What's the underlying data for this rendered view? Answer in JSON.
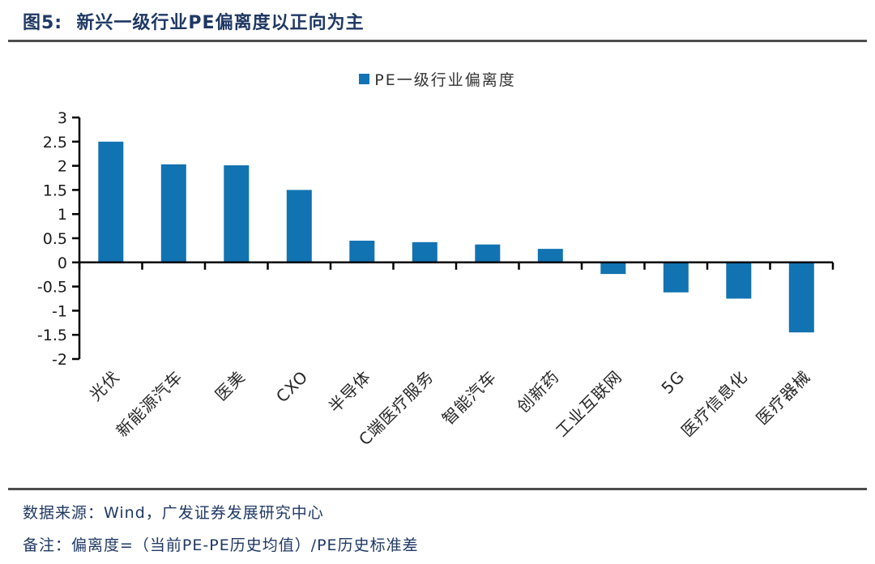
{
  "header": {
    "title": "图5:  新兴一级行业PE偏离度以正向为主"
  },
  "chart_data": {
    "type": "bar",
    "title": "",
    "legend": "PE一级行业偏离度",
    "legend_position": "top-center",
    "categories": [
      "光伏",
      "新能源汽车",
      "医美",
      "CXO",
      "半导体",
      "C端医疗服务",
      "智能汽车",
      "创新药",
      "工业互联网",
      "5G",
      "医疗信息化",
      "医疗器械"
    ],
    "values": [
      2.5,
      2.03,
      2.01,
      1.5,
      0.45,
      0.42,
      0.37,
      0.28,
      -0.24,
      -0.62,
      -0.75,
      -1.45
    ],
    "xlabel": "",
    "ylabel": "",
    "ylim": [
      -2,
      3
    ],
    "yticks": [
      "3",
      "2.5",
      "2",
      "1.5",
      "1",
      "0.5",
      "0",
      "-0.5",
      "-1",
      "-1.5",
      "-2"
    ],
    "grid": false,
    "x_label_rotation": -45,
    "bar_color": "#1273b2",
    "legend_color": "#1274b5",
    "axis_color": "#000000"
  },
  "footer": {
    "source": "数据来源：Wind，广发证券发展研究中心",
    "note": "备注：偏离度=（当前PE-PE历史均值）/PE历史标准差"
  },
  "colors": {
    "title_navy": "#1f3864",
    "divider_gray": "#4d4d4d",
    "tick_text": "#262626"
  }
}
